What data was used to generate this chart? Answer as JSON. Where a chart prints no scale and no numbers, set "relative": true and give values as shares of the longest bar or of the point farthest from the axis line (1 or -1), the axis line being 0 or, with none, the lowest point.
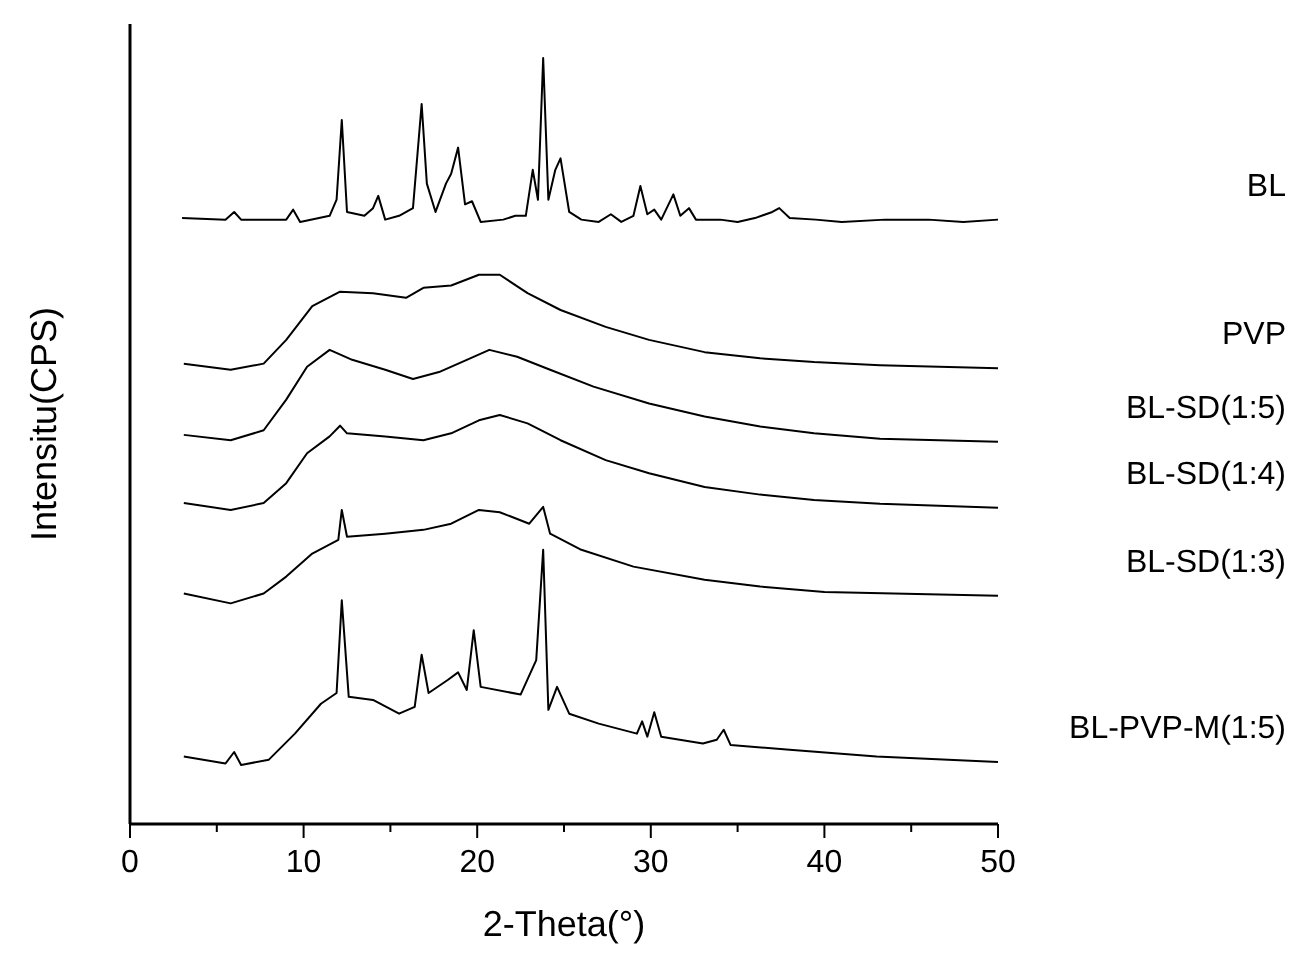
{
  "chart_data": {
    "type": "line",
    "relative": true,
    "xlabel": "2-Theta(°)",
    "ylabel": "Intensitu(CPS)",
    "xlim": [
      0,
      50
    ],
    "xticks": [
      0,
      {
        "value": 5,
        "label": null
      },
      10,
      {
        "value": 15,
        "label": null
      },
      20,
      {
        "value": 25,
        "label": null
      },
      30,
      {
        "value": 35,
        "label": null
      },
      40,
      {
        "value": 45,
        "label": null
      },
      50
    ],
    "tick_labels": "x",
    "grid": false,
    "legend": false,
    "marker": "none",
    "line_style": "solid",
    "series": [
      {
        "name": "BL",
        "color": "#000000",
        "x": [
          3.0,
          5.5,
          6.0,
          6.4,
          9.0,
          9.4,
          9.8,
          11.5,
          11.9,
          12.2,
          12.5,
          13.5,
          14.0,
          14.3,
          14.7,
          15.5,
          16.3,
          16.8,
          17.1,
          17.6,
          18.2,
          18.5,
          18.9,
          19.3,
          19.7,
          20.2,
          21.5,
          22.2,
          22.8,
          23.2,
          23.5,
          23.8,
          24.1,
          24.5,
          24.8,
          25.3,
          26.0,
          27.0,
          27.7,
          28.3,
          29.0,
          29.4,
          29.8,
          30.2,
          30.6,
          31.3,
          31.7,
          32.2,
          32.6,
          34.0,
          35.0,
          36.0,
          37.0,
          37.4,
          38.0,
          39.5,
          41.0,
          43.5,
          46.0,
          48.0,
          50.0
        ],
        "values": [
          0.791,
          0.789,
          0.799,
          0.789,
          0.789,
          0.802,
          0.786,
          0.794,
          0.815,
          0.919,
          0.799,
          0.794,
          0.804,
          0.82,
          0.789,
          0.794,
          0.804,
          0.94,
          0.836,
          0.799,
          0.836,
          0.849,
          0.883,
          0.809,
          0.813,
          0.786,
          0.789,
          0.794,
          0.794,
          0.854,
          0.815,
          1.0,
          0.815,
          0.854,
          0.869,
          0.799,
          0.789,
          0.786,
          0.796,
          0.786,
          0.794,
          0.833,
          0.796,
          0.802,
          0.789,
          0.822,
          0.794,
          0.804,
          0.789,
          0.789,
          0.786,
          0.791,
          0.799,
          0.804,
          0.791,
          0.789,
          0.786,
          0.789,
          0.789,
          0.786,
          0.789
        ]
      },
      {
        "name": "PVP",
        "color": "#000000",
        "x": [
          3.1,
          5.8,
          7.7,
          9.0,
          10.5,
          12.1,
          14.0,
          15.9,
          16.9,
          18.5,
          20.1,
          21.3,
          22.9,
          24.8,
          27.4,
          29.9,
          33.1,
          36.3,
          39.4,
          43.2,
          50.0
        ],
        "values": [
          0.601,
          0.593,
          0.601,
          0.632,
          0.676,
          0.695,
          0.693,
          0.687,
          0.7,
          0.703,
          0.717,
          0.717,
          0.693,
          0.671,
          0.649,
          0.632,
          0.616,
          0.608,
          0.603,
          0.599,
          0.595
        ]
      },
      {
        "name": "BL-SD(1:5)",
        "color": "#000000",
        "x": [
          3.1,
          5.8,
          7.7,
          9.0,
          10.2,
          11.5,
          12.8,
          14.7,
          16.3,
          17.8,
          19.4,
          20.7,
          22.3,
          24.2,
          26.7,
          29.9,
          33.1,
          36.3,
          39.4,
          43.2,
          50.0
        ],
        "values": [
          0.508,
          0.501,
          0.514,
          0.554,
          0.597,
          0.619,
          0.606,
          0.593,
          0.581,
          0.59,
          0.606,
          0.619,
          0.61,
          0.593,
          0.571,
          0.549,
          0.532,
          0.519,
          0.51,
          0.503,
          0.499
        ]
      },
      {
        "name": "BL-SD(1:4)",
        "color": "#000000",
        "x": [
          3.1,
          5.8,
          7.7,
          9.0,
          10.2,
          11.5,
          12.1,
          12.5,
          14.7,
          16.9,
          18.5,
          20.1,
          21.3,
          22.9,
          24.8,
          27.4,
          29.9,
          33.1,
          36.3,
          39.4,
          43.2,
          50.0
        ],
        "values": [
          0.419,
          0.41,
          0.419,
          0.445,
          0.484,
          0.506,
          0.52,
          0.51,
          0.506,
          0.501,
          0.51,
          0.527,
          0.534,
          0.523,
          0.501,
          0.475,
          0.458,
          0.44,
          0.43,
          0.423,
          0.418,
          0.413
        ]
      },
      {
        "name": "BL-SD(1:3)",
        "color": "#000000",
        "x": [
          3.1,
          5.8,
          7.7,
          9.0,
          10.5,
          12.0,
          12.2,
          12.5,
          14.7,
          16.9,
          18.5,
          20.1,
          21.3,
          23.0,
          23.8,
          24.2,
          26.0,
          29.0,
          33.1,
          36.3,
          40.0,
          50.0
        ],
        "values": [
          0.301,
          0.288,
          0.301,
          0.323,
          0.353,
          0.371,
          0.41,
          0.375,
          0.379,
          0.384,
          0.392,
          0.41,
          0.407,
          0.392,
          0.414,
          0.379,
          0.358,
          0.336,
          0.319,
          0.31,
          0.303,
          0.298
        ]
      },
      {
        "name": "BL-PVP-M(1:5)",
        "color": "#000000",
        "x": [
          3.1,
          5.5,
          6.0,
          6.4,
          8.0,
          9.5,
          11.0,
          11.9,
          12.2,
          12.6,
          14.0,
          15.5,
          16.4,
          16.8,
          17.2,
          18.3,
          18.9,
          19.4,
          19.8,
          20.2,
          22.5,
          23.4,
          23.8,
          24.1,
          24.6,
          25.3,
          27.0,
          29.2,
          29.5,
          29.8,
          30.2,
          30.6,
          33.0,
          33.8,
          34.2,
          34.6,
          38.0,
          43.0,
          50.0
        ],
        "values": [
          0.088,
          0.079,
          0.094,
          0.077,
          0.084,
          0.118,
          0.157,
          0.171,
          0.292,
          0.166,
          0.162,
          0.144,
          0.153,
          0.221,
          0.171,
          0.188,
          0.198,
          0.175,
          0.253,
          0.179,
          0.169,
          0.214,
          0.358,
          0.149,
          0.179,
          0.144,
          0.131,
          0.118,
          0.134,
          0.114,
          0.146,
          0.114,
          0.105,
          0.11,
          0.123,
          0.103,
          0.097,
          0.088,
          0.081
        ]
      }
    ]
  }
}
